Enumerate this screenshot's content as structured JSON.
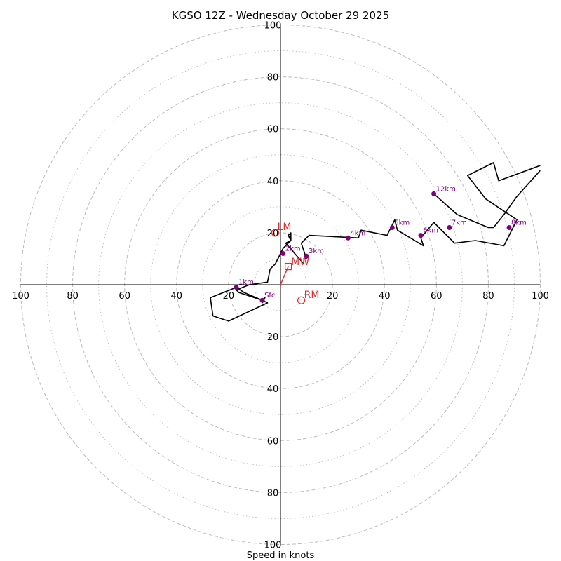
{
  "chart_data": {
    "type": "hodograph",
    "title": "KGSO 12Z - Wednesday October 29 2025",
    "xlabel": "Speed in knots",
    "units": "knots",
    "range": [
      -100,
      100
    ],
    "ring_values_dashed": [
      20,
      40,
      60,
      80,
      100
    ],
    "ring_values_dotted": [
      10,
      30,
      50,
      70,
      90
    ],
    "x_ticks": [
      {
        "value": -100,
        "label": "100"
      },
      {
        "value": -80,
        "label": "80"
      },
      {
        "value": -60,
        "label": "60"
      },
      {
        "value": -40,
        "label": "40"
      },
      {
        "value": -20,
        "label": "20"
      },
      {
        "value": 20,
        "label": "20"
      },
      {
        "value": 40,
        "label": "40"
      },
      {
        "value": 60,
        "label": "60"
      },
      {
        "value": 80,
        "label": "80"
      },
      {
        "value": 100,
        "label": "100"
      }
    ],
    "y_ticks": [
      {
        "value": 100,
        "label": "100"
      },
      {
        "value": 80,
        "label": "80"
      },
      {
        "value": 60,
        "label": "60"
      },
      {
        "value": 40,
        "label": "40"
      },
      {
        "value": 20,
        "label": "20"
      },
      {
        "value": -20,
        "label": "20"
      },
      {
        "value": -40,
        "label": "40"
      },
      {
        "value": -60,
        "label": "60"
      },
      {
        "value": -80,
        "label": "80"
      },
      {
        "value": -100,
        "label": "100"
      }
    ],
    "trace": [
      [
        -7,
        -7
      ],
      [
        -6,
        -5
      ],
      [
        -7,
        -6
      ],
      [
        -14,
        -3
      ],
      [
        -17,
        -1
      ],
      [
        -27,
        -5
      ],
      [
        -26,
        -12
      ],
      [
        -20,
        -14
      ],
      [
        -5,
        -7
      ],
      [
        -7,
        -6
      ],
      [
        -16,
        -3
      ],
      [
        -17,
        -2
      ],
      [
        -12,
        0
      ],
      [
        -5,
        1
      ],
      [
        -4,
        6
      ],
      [
        -3,
        7
      ],
      [
        -2,
        8
      ],
      [
        -1,
        10
      ],
      [
        0,
        12
      ],
      [
        1,
        14
      ],
      [
        3,
        16
      ],
      [
        4,
        17
      ],
      [
        4,
        20
      ],
      [
        3,
        19
      ],
      [
        4,
        17
      ],
      [
        2,
        16
      ],
      [
        2,
        16
      ],
      [
        9,
        8
      ],
      [
        9,
        10
      ],
      [
        10,
        10
      ],
      [
        8,
        16
      ],
      [
        11,
        19
      ],
      [
        30,
        18
      ],
      [
        30,
        18
      ],
      [
        31,
        21
      ],
      [
        41,
        19
      ],
      [
        44,
        25
      ],
      [
        45,
        21
      ],
      [
        55,
        15
      ],
      [
        55,
        15
      ],
      [
        55,
        15
      ],
      [
        54,
        18
      ],
      [
        59,
        24
      ],
      [
        67,
        16
      ],
      [
        75,
        17
      ],
      [
        86,
        15
      ],
      [
        91,
        25
      ],
      [
        79,
        33
      ],
      [
        72,
        42
      ],
      [
        82,
        47
      ],
      [
        84,
        40
      ],
      [
        103,
        47
      ],
      [
        100,
        44
      ],
      [
        91,
        34
      ],
      [
        86,
        27
      ],
      [
        82,
        22
      ],
      [
        80,
        22
      ],
      [
        68,
        27
      ],
      [
        59,
        35
      ]
    ],
    "height_markers": [
      {
        "label": "Sfc",
        "u": -7,
        "v": -6
      },
      {
        "label": "1km",
        "u": -17,
        "v": -1
      },
      {
        "label": "2km",
        "u": 1,
        "v": 12
      },
      {
        "label": "3km",
        "u": 10,
        "v": 11
      },
      {
        "label": "4km",
        "u": 26,
        "v": 18
      },
      {
        "label": "5km",
        "u": 43,
        "v": 22
      },
      {
        "label": "6km",
        "u": 54,
        "v": 19
      },
      {
        "label": "7km",
        "u": 65,
        "v": 22
      },
      {
        "label": "8km",
        "u": 88,
        "v": 22
      },
      {
        "label": "12km",
        "u": 59,
        "v": 35
      }
    ],
    "storm_motion": {
      "mean_wind": {
        "label": "MW",
        "u": 3,
        "v": 7
      },
      "left_mover": {
        "label": "LM",
        "u": -2,
        "v": 20
      },
      "right_mover": {
        "label": "RM",
        "u": 8,
        "v": -6
      }
    },
    "colors": {
      "trace": "#000000",
      "height_markers": "#800080",
      "storm_motion": "#e03030",
      "grid": "#bbbbbb",
      "axes": "#000000"
    }
  }
}
